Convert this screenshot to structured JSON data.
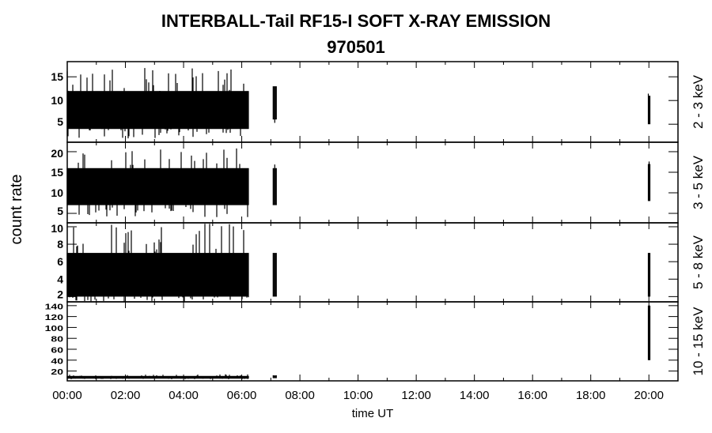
{
  "chart_data": {
    "type": "line",
    "title": "INTERBALL-Tail RF15-I SOFT X-RAY EMISSION",
    "subtitle": "970501",
    "xlabel": "time UT",
    "ylabel": "count rate",
    "x_unit": "hours UT",
    "xlim": [
      0,
      21
    ],
    "x_ticks": [
      "00:00",
      "02:00",
      "04:00",
      "06:00",
      "08:00",
      "10:00",
      "12:00",
      "14:00",
      "16:00",
      "18:00",
      "20:00"
    ],
    "grid": false,
    "panels": [
      {
        "label": "2 - 3 keV",
        "ylim": [
          1.2,
          18.2
        ],
        "y_ticks": [
          5,
          10,
          15
        ],
        "segments": [
          {
            "start": 0.0,
            "end": 6.25,
            "typical_range": [
              4,
              12
            ],
            "extreme_range": [
              2,
              17
            ]
          },
          {
            "start": 7.08,
            "end": 7.2,
            "typical_range": [
              6,
              13
            ],
            "extreme_range": [
              5,
              14
            ]
          },
          {
            "start": 19.98,
            "end": 20.02,
            "typical_range": [
              5,
              11
            ],
            "extreme_range": [
              5,
              12
            ]
          }
        ]
      },
      {
        "label": "3 - 5 keV",
        "ylim": [
          2.7,
          22.3
        ],
        "y_ticks": [
          5,
          10,
          15,
          20
        ],
        "segments": [
          {
            "start": 0.0,
            "end": 6.25,
            "typical_range": [
              7,
              16
            ],
            "extreme_range": [
              4,
              21
            ]
          },
          {
            "start": 7.08,
            "end": 7.2,
            "typical_range": [
              7,
              16
            ],
            "extreme_range": [
              6,
              17
            ]
          },
          {
            "start": 19.98,
            "end": 20.02,
            "typical_range": [
              8,
              17
            ],
            "extreme_range": [
              7,
              18
            ]
          }
        ]
      },
      {
        "label": "5 - 8 keV",
        "ylim": [
          1.4,
          10.45
        ],
        "y_ticks": [
          2,
          4,
          6,
          8,
          10
        ],
        "segments": [
          {
            "start": 0.0,
            "end": 6.25,
            "typical_range": [
              2,
              7
            ],
            "extreme_range": [
              1.4,
              10.4
            ]
          },
          {
            "start": 7.08,
            "end": 7.2,
            "typical_range": [
              2,
              7
            ],
            "extreme_range": [
              1.5,
              8
            ]
          },
          {
            "start": 19.98,
            "end": 20.02,
            "typical_range": [
              2,
              7
            ],
            "extreme_range": [
              2,
              8
            ]
          }
        ]
      },
      {
        "label": "10 - 15 keV",
        "ylim": [
          2,
          147
        ],
        "y_ticks": [
          20,
          40,
          60,
          80,
          100,
          120,
          140
        ],
        "segments": [
          {
            "start": 0.0,
            "end": 6.25,
            "typical_range": [
              6,
              11
            ],
            "extreme_range": [
              5,
              14
            ]
          },
          {
            "start": 7.08,
            "end": 7.2,
            "typical_range": [
              7,
              12
            ],
            "extreme_range": [
              7,
              13
            ]
          },
          {
            "start": 19.98,
            "end": 20.02,
            "typical_range": [
              40,
              140
            ],
            "extreme_range": [
              38,
              142
            ]
          }
        ]
      }
    ]
  }
}
